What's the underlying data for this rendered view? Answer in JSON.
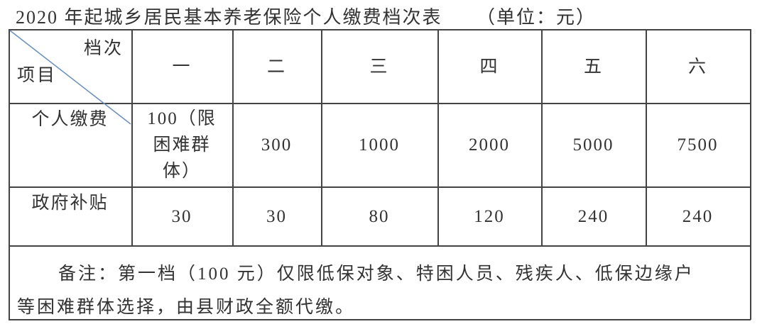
{
  "title": "2020 年起城乡居民基本养老保险个人缴费档次表",
  "unit": "（单位：元）",
  "header": {
    "corner_top": "档次",
    "corner_bottom": "项目",
    "levels": [
      "一",
      "二",
      "三",
      "四",
      "五",
      "六"
    ]
  },
  "rows": [
    {
      "label": "个人缴费",
      "values": [
        "100（限困难群体）",
        "300",
        "1000",
        "2000",
        "5000",
        "7500"
      ]
    },
    {
      "label": "政府补贴",
      "values": [
        "30",
        "30",
        "80",
        "120",
        "240",
        "240"
      ]
    }
  ],
  "note_line1": "备注：第一档（100 元）仅限低保对象、特困人员、残疾人、低保边缘户",
  "note_line2": "等困难群体选择，由县财政全额代缴。",
  "colors": {
    "diagonal": "#6a8fc4",
    "border": "#444444"
  }
}
